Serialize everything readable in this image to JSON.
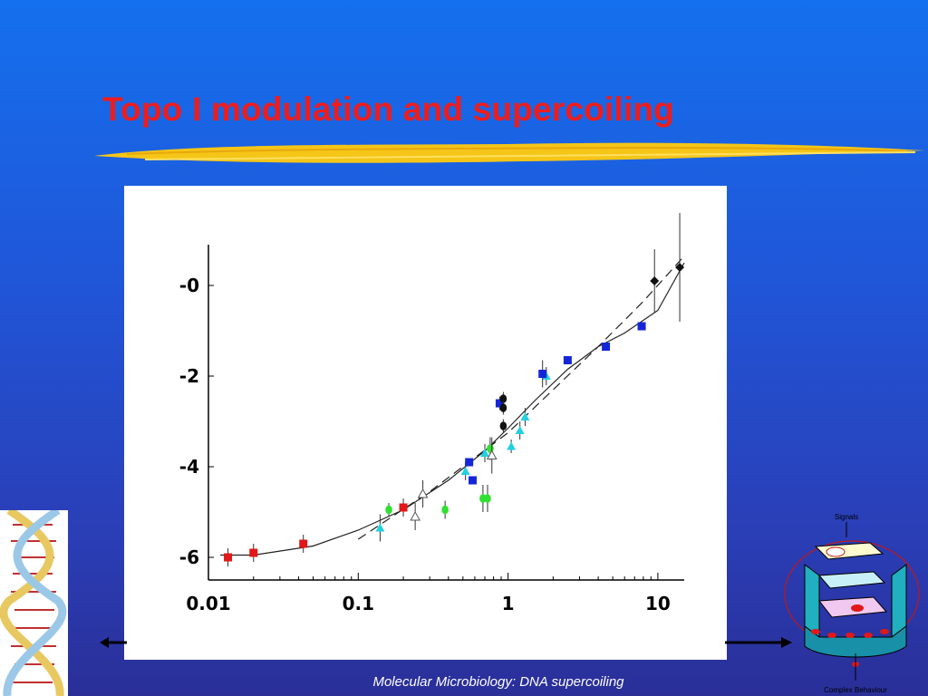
{
  "slide": {
    "title": "Topo I modulation and supercoiling",
    "footer": "Molecular Microbiology: DNA supercoiling"
  },
  "colors": {
    "title": "#ee1c1c",
    "underline": "#f5c518",
    "background_top": "#1470ee",
    "background_bottom": "#2a2f98"
  },
  "decorations": {
    "dna_image": "dna-double-helix-icon",
    "cell_diagram": "cell-signalling-diagram-icon",
    "cell_diagram_top_label": "Signals",
    "cell_diagram_bottom_label": "Complex Behaviour",
    "left_arrow": "arrow-left-icon",
    "right_arrow": "arrow-right-icon"
  },
  "chart_data": {
    "type": "scatter",
    "title": "",
    "xlabel": "",
    "ylabel": "",
    "x_scale": "log",
    "xlim": [
      0.01,
      15
    ],
    "ylim": [
      -6.5,
      0.9
    ],
    "x_ticks": [
      {
        "value": 0.01,
        "label": "0.01"
      },
      {
        "value": 0.1,
        "label": "0.1"
      },
      {
        "value": 1,
        "label": "1"
      },
      {
        "value": 10,
        "label": "10"
      }
    ],
    "y_ticks": [
      {
        "value": 0,
        "label": "-0"
      },
      {
        "value": -2,
        "label": "-2"
      },
      {
        "value": -4,
        "label": "-4"
      },
      {
        "value": -6,
        "label": "-6"
      }
    ],
    "grid": false,
    "series": [
      {
        "marker": "square",
        "color": "#e01818",
        "points": [
          {
            "x": 0.0135,
            "y": -6.0,
            "err": 0.2
          },
          {
            "x": 0.02,
            "y": -5.9,
            "err": 0.2
          },
          {
            "x": 0.043,
            "y": -5.7,
            "err": 0.2
          },
          {
            "x": 0.2,
            "y": -4.9,
            "err": 0.2
          }
        ]
      },
      {
        "marker": "triangle",
        "color": "#22d0e0",
        "points": [
          {
            "x": 0.14,
            "y": -5.35,
            "err": 0.3
          },
          {
            "x": 0.52,
            "y": -4.1,
            "err": 0.2
          },
          {
            "x": 0.7,
            "y": -3.7,
            "err": 0.2
          },
          {
            "x": 1.05,
            "y": -3.55,
            "err": 0.15
          },
          {
            "x": 1.2,
            "y": -3.2,
            "err": 0.2
          },
          {
            "x": 1.3,
            "y": -2.9,
            "err": 0.2
          },
          {
            "x": 1.8,
            "y": -2.0,
            "err": 0.2
          }
        ]
      },
      {
        "marker": "circle",
        "color": "#30e030",
        "points": [
          {
            "x": 0.16,
            "y": -4.95,
            "err": 0.15
          },
          {
            "x": 0.38,
            "y": -4.95,
            "err": 0.2
          },
          {
            "x": 0.68,
            "y": -4.7,
            "err": 0.3
          },
          {
            "x": 0.73,
            "y": -4.7,
            "err": 0.3
          },
          {
            "x": 0.76,
            "y": -3.6,
            "err": 0.25
          }
        ]
      },
      {
        "marker": "open-triangle",
        "color": "#555555",
        "points": [
          {
            "x": 0.27,
            "y": -4.6,
            "err": 0.3
          },
          {
            "x": 0.24,
            "y": -5.1,
            "err": 0.3
          },
          {
            "x": 0.78,
            "y": -3.75,
            "err": 0.4
          }
        ]
      },
      {
        "marker": "square",
        "color": "#1426d8",
        "points": [
          {
            "x": 0.55,
            "y": -3.9,
            "err": 0
          },
          {
            "x": 0.58,
            "y": -4.3,
            "err": 0
          },
          {
            "x": 0.88,
            "y": -2.6,
            "err": 0.15
          },
          {
            "x": 1.7,
            "y": -1.95,
            "err": 0.3
          },
          {
            "x": 2.5,
            "y": -1.65,
            "err": 0
          },
          {
            "x": 4.5,
            "y": -1.35,
            "err": 0
          },
          {
            "x": 7.8,
            "y": -0.9,
            "err": 0
          }
        ]
      },
      {
        "marker": "circle",
        "color": "#111111",
        "points": [
          {
            "x": 0.93,
            "y": -2.5,
            "err": 0.15
          },
          {
            "x": 0.93,
            "y": -2.7,
            "err": 0.15
          },
          {
            "x": 0.93,
            "y": -3.1,
            "err": 0.15
          }
        ]
      },
      {
        "marker": "diamond",
        "color": "#111111",
        "points": [
          {
            "x": 9.5,
            "y": 0.1,
            "err": 0.7
          },
          {
            "x": 14,
            "y": 0.4,
            "err": 1.2
          }
        ]
      }
    ],
    "curves": [
      {
        "style": "solid",
        "color": "#222222",
        "points": [
          [
            0.012,
            -5.95
          ],
          [
            0.02,
            -5.95
          ],
          [
            0.05,
            -5.75
          ],
          [
            0.1,
            -5.4
          ],
          [
            0.2,
            -4.95
          ],
          [
            0.4,
            -4.3
          ],
          [
            0.7,
            -3.65
          ],
          [
            1.0,
            -3.15
          ],
          [
            1.5,
            -2.55
          ],
          [
            2.5,
            -1.85
          ],
          [
            4.0,
            -1.35
          ],
          [
            6.0,
            -1.05
          ],
          [
            10.0,
            -0.55
          ],
          [
            15.0,
            0.5
          ]
        ]
      },
      {
        "style": "dashed",
        "color": "#222222",
        "points": [
          [
            0.1,
            -5.6
          ],
          [
            0.3,
            -4.55
          ],
          [
            0.6,
            -3.8
          ],
          [
            1.0,
            -3.25
          ],
          [
            2.0,
            -2.3
          ],
          [
            4.0,
            -1.35
          ],
          [
            8.0,
            -0.35
          ],
          [
            15.0,
            0.65
          ]
        ]
      }
    ]
  }
}
